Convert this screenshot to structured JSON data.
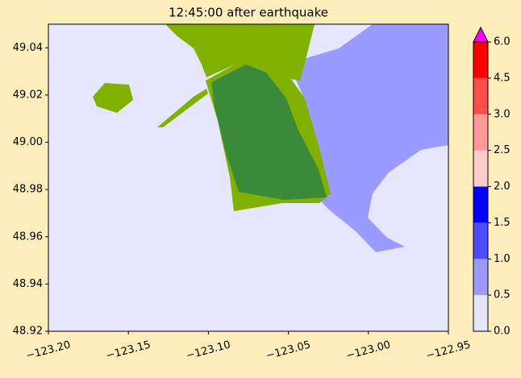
{
  "chart_data": {
    "type": "map",
    "title": "12:45:00 after earthquake",
    "xlim": [
      -123.2,
      -122.95
    ],
    "ylim": [
      48.92,
      49.05
    ],
    "xticks": [
      {
        "value": -123.2,
        "label": "−123.20"
      },
      {
        "value": -123.15,
        "label": "−123.15"
      },
      {
        "value": -123.1,
        "label": "−123.10"
      },
      {
        "value": -123.05,
        "label": "−123.05"
      },
      {
        "value": -123.0,
        "label": "−123.00"
      },
      {
        "value": -122.95,
        "label": "−122.95"
      }
    ],
    "yticks": [
      48.92,
      48.94,
      48.96,
      48.98,
      {
        "value": 49.0,
        "label": "49.00"
      },
      49.02,
      49.04
    ],
    "colorbar": {
      "levels": [
        {
          "value": 0,
          "label": "0.0"
        },
        0.5,
        {
          "value": 1,
          "label": "1.0"
        },
        1.5,
        {
          "value": 2,
          "label": "2.0"
        },
        2.5,
        {
          "value": 3,
          "label": "3.0"
        },
        4.5,
        {
          "value": 6,
          "label": "6.0"
        }
      ],
      "colors": [
        "#e6e6ff",
        "#9b9bff",
        "#4d4dff",
        "#0000ff",
        "#ffcccc",
        "#ff9999",
        "#ff4d4d",
        "#ff0000"
      ],
      "extend_color": "#ff00ff"
    }
  }
}
